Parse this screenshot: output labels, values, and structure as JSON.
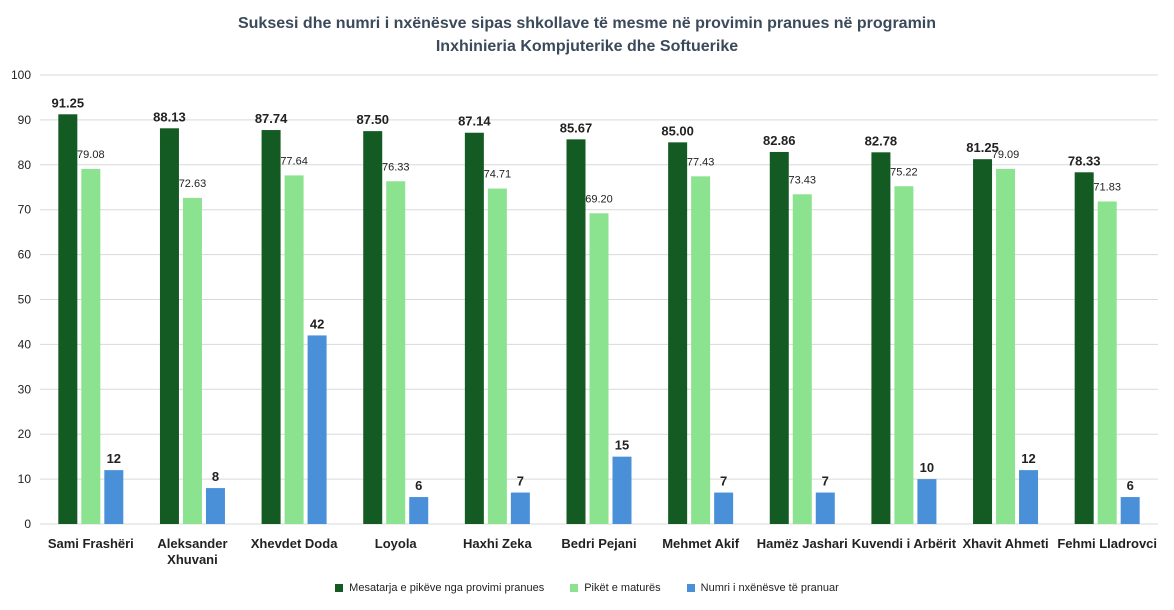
{
  "chart_data": {
    "type": "bar",
    "title": [
      "Suksesi dhe numri i nxënësve sipas shkollave të mesme në provimin pranues në programin",
      "Inxhinieria Kompjuterike dhe Softuerike"
    ],
    "categories": [
      [
        "Sami Frashëri"
      ],
      [
        "Aleksander",
        "Xhuvani"
      ],
      [
        "Xhevdet Doda"
      ],
      [
        "Loyola"
      ],
      [
        "Haxhi Zeka"
      ],
      [
        "Bedri Pejani"
      ],
      [
        "Mehmet Akif"
      ],
      [
        "Hamëz Jashari"
      ],
      [
        "Kuvendi i Arbërit"
      ],
      [
        "Xhavit Ahmeti"
      ],
      [
        "Fehmi Lladrovci"
      ]
    ],
    "series": [
      {
        "name": "Mesatarja e pikëve nga provimi pranues",
        "color": "#145a23",
        "values": [
          91.25,
          88.13,
          87.74,
          87.5,
          87.14,
          85.67,
          85.0,
          82.86,
          82.78,
          81.25,
          78.33
        ],
        "labels": [
          "91.25",
          "88.13",
          "87.74",
          "87.50",
          "87.14",
          "85.67",
          "85.00",
          "82.86",
          "82.78",
          "81.25",
          "78.33"
        ],
        "label_style": "bold"
      },
      {
        "name": "Pikët e maturës",
        "color": "#8be28f",
        "values": [
          79.08,
          72.63,
          77.64,
          76.33,
          74.71,
          69.2,
          77.43,
          73.43,
          75.22,
          79.09,
          71.83
        ],
        "labels": [
          "79.08",
          "72.63",
          "77.64",
          "76.33",
          "74.71",
          "69.20",
          "77.43",
          "73.43",
          "75.22",
          "79.09",
          "71.83"
        ],
        "label_style": "normal"
      },
      {
        "name": "Numri i nxënësve të pranuar",
        "color": "#4a90d9",
        "values": [
          12,
          8,
          42,
          6,
          7,
          15,
          7,
          7,
          10,
          12,
          6
        ],
        "labels": [
          "12",
          "8",
          "42",
          "6",
          "7",
          "15",
          "7",
          "7",
          "10",
          "12",
          "6"
        ],
        "label_style": "bold"
      }
    ],
    "ylim": [
      0,
      100
    ],
    "yticks": [
      "0",
      "10",
      "20",
      "30",
      "40",
      "50",
      "60",
      "70",
      "80",
      "90",
      "100"
    ],
    "grid": true,
    "legend_position": "bottom"
  }
}
